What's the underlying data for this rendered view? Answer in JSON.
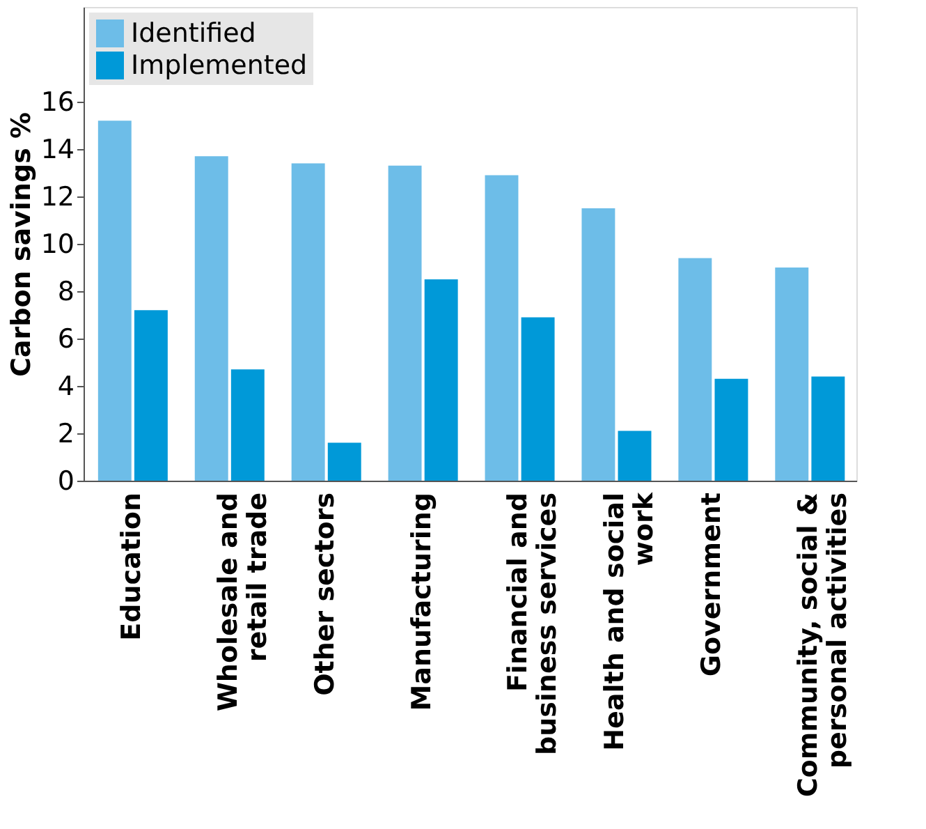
{
  "chart_data": {
    "type": "bar",
    "ylabel": "Carbon savings %",
    "categories": [
      "Education",
      "Wholesale and retail trade",
      "Other sectors",
      "Manufacturing",
      "Financial and business services",
      "Health and social work",
      "Government",
      "Community, social & personal activities"
    ],
    "series": [
      {
        "name": "Identified",
        "color": "#6dbde8",
        "values": [
          15.2,
          13.7,
          13.4,
          13.3,
          12.9,
          11.5,
          9.4,
          9.0
        ]
      },
      {
        "name": "Implemented",
        "color": "#0099d8",
        "values": [
          7.2,
          4.7,
          1.6,
          8.5,
          6.9,
          2.1,
          4.3,
          4.4
        ]
      }
    ],
    "ylim": [
      0,
      20
    ],
    "yticks": [
      0,
      2,
      4,
      6,
      8,
      10,
      12,
      14,
      16
    ],
    "grid": false,
    "legend": "top left"
  }
}
